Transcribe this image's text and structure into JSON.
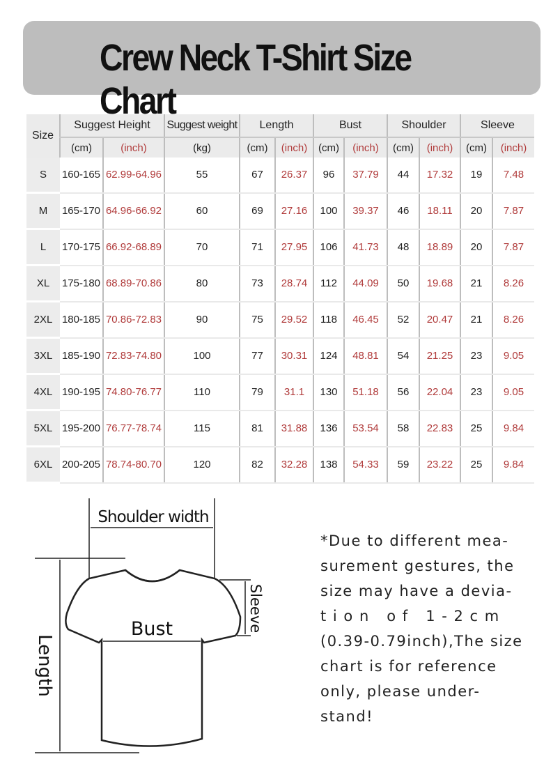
{
  "title": "Crew Neck T-Shirt Size Chart",
  "table": {
    "headers": {
      "size": "Size",
      "height": "Suggest Height",
      "weight": "Suggest weight",
      "length": "Length",
      "bust": "Bust",
      "shoulder": "Shoulder",
      "sleeve": "Sleeve"
    },
    "units": [
      "(cm)",
      "(inch)",
      "(kg)",
      "(cm)",
      "(inch)",
      "(cm)",
      "(inch)",
      "(cm)",
      "(inch)",
      "(cm)",
      "(inch)"
    ],
    "rows": [
      [
        "S",
        "160-165",
        "62.99-64.96",
        "55",
        "67",
        "26.37",
        "96",
        "37.79",
        "44",
        "17.32",
        "19",
        "7.48"
      ],
      [
        "M",
        "165-170",
        "64.96-66.92",
        "60",
        "69",
        "27.16",
        "100",
        "39.37",
        "46",
        "18.11",
        "20",
        "7.87"
      ],
      [
        "L",
        "170-175",
        "66.92-68.89",
        "70",
        "71",
        "27.95",
        "106",
        "41.73",
        "48",
        "18.89",
        "20",
        "7.87"
      ],
      [
        "XL",
        "175-180",
        "68.89-70.86",
        "80",
        "73",
        "28.74",
        "112",
        "44.09",
        "50",
        "19.68",
        "21",
        "8.26"
      ],
      [
        "2XL",
        "180-185",
        "70.86-72.83",
        "90",
        "75",
        "29.52",
        "118",
        "46.45",
        "52",
        "20.47",
        "21",
        "8.26"
      ],
      [
        "3XL",
        "185-190",
        "72.83-74.80",
        "100",
        "77",
        "30.31",
        "124",
        "48.81",
        "54",
        "21.25",
        "23",
        "9.05"
      ],
      [
        "4XL",
        "190-195",
        "74.80-76.77",
        "110",
        "79",
        "31.1",
        "130",
        "51.18",
        "56",
        "22.04",
        "23",
        "9.05"
      ],
      [
        "5XL",
        "195-200",
        "76.77-78.74",
        "115",
        "81",
        "31.88",
        "136",
        "53.54",
        "58",
        "22.83",
        "25",
        "9.84"
      ],
      [
        "6XL",
        "200-205",
        "78.74-80.70",
        "120",
        "82",
        "32.28",
        "138",
        "54.33",
        "59",
        "23.22",
        "25",
        "9.84"
      ]
    ]
  },
  "diagram": {
    "shoulder_label": "Shoulder width",
    "bust_label": "Bust",
    "length_label": "Length",
    "sleeve_label": "Sleeve"
  },
  "note_lines": [
    "*Due to different mea-",
    "surement gestures, the",
    "size may have a devia-",
    "t i o n   o f   1 - 2 c m",
    "(0.39-0.79inch),The size",
    "chart is for reference",
    "only, please under-",
    "stand!"
  ],
  "colors": {
    "banner": "#bdbdbd",
    "inch_text": "#b03a3a",
    "header_bg": "#ebebeb"
  }
}
